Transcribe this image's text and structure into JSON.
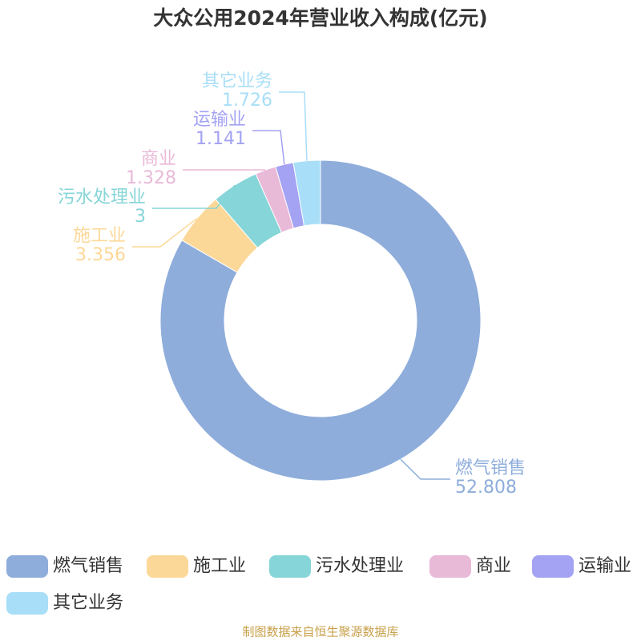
{
  "chart_data": {
    "type": "donut",
    "title": "大众公用2024年营业收入构成(亿元)",
    "categories": [
      "燃气销售",
      "施工业",
      "污水处理业",
      "商业",
      "运输业",
      "其它业务"
    ],
    "values": [
      52.808,
      3.356,
      3,
      1.328,
      1.141,
      1.726
    ],
    "colors": [
      "#8eaddb",
      "#fcd898",
      "#86d5d8",
      "#e9b9d8",
      "#a3a2f3",
      "#a8def7"
    ],
    "legend": "bottom",
    "source": "制图数据来自恒生聚源数据库"
  }
}
